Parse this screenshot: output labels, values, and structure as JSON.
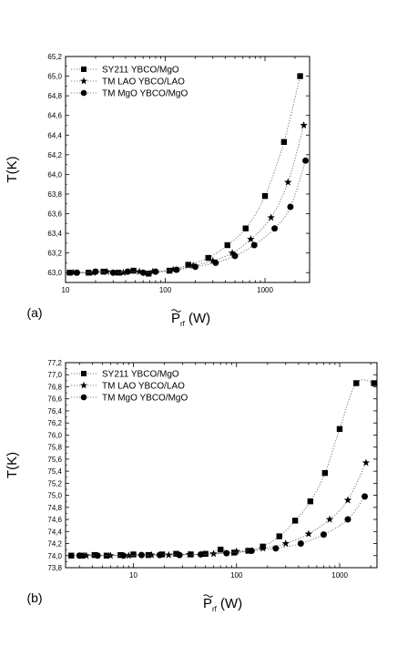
{
  "chart_data": [
    {
      "type": "scatter",
      "panel_label": "(a)",
      "xlabel": "P",
      "xlabel_sub": "rf",
      "xlabel_unit": "(W)",
      "ylabel": "T(K)",
      "x_scale": "log",
      "xlim": [
        10,
        2800
      ],
      "ylim": [
        62.9,
        65.2
      ],
      "x_tick_labels": [
        "10",
        "100",
        "1000"
      ],
      "y_tick_labels": [
        "63,0",
        "63,2",
        "63,4",
        "63,6",
        "63,8",
        "64,0",
        "64,2",
        "64,4",
        "64,6",
        "64,8",
        "65,0",
        "65,2"
      ],
      "y_tick_values": [
        63.0,
        63.2,
        63.4,
        63.6,
        63.8,
        64.0,
        64.2,
        64.4,
        64.6,
        64.8,
        65.0,
        65.2
      ],
      "legend_position": "top-left",
      "series": [
        {
          "name": "SY211  YBCO/MgO",
          "marker": "square",
          "x": [
            11,
            17,
            24,
            34,
            48,
            68,
            110,
            170,
            270,
            420,
            640,
            1000,
            1550,
            2250
          ],
          "y": [
            63.0,
            63.0,
            63.01,
            63.0,
            63.02,
            62.99,
            63.02,
            63.08,
            63.15,
            63.28,
            63.45,
            63.78,
            64.33,
            65.0
          ]
        },
        {
          "name": "TM LAO YBCO/LAO",
          "marker": "star",
          "x": [
            12,
            19,
            26,
            38,
            55,
            75,
            120,
            190,
            300,
            470,
            720,
            1150,
            1700,
            2450
          ],
          "y": [
            63.0,
            63.0,
            63.01,
            63.0,
            63.01,
            63.01,
            63.03,
            63.07,
            63.12,
            63.2,
            63.34,
            63.56,
            63.92,
            64.5
          ]
        },
        {
          "name": "TM MgO YBCO/MgO",
          "marker": "circle",
          "x": [
            13,
            20,
            30,
            42,
            60,
            80,
            130,
            200,
            320,
            500,
            780,
            1250,
            1800,
            2550
          ],
          "y": [
            63.0,
            63.01,
            63.0,
            63.01,
            63.0,
            63.01,
            63.03,
            63.06,
            63.1,
            63.17,
            63.28,
            63.45,
            63.67,
            64.14
          ]
        }
      ]
    },
    {
      "type": "scatter",
      "panel_label": "(b)",
      "xlabel": "P",
      "xlabel_sub": "rf",
      "xlabel_unit": "(W)",
      "ylabel": "T(K)",
      "x_scale": "log",
      "xlim": [
        2.2,
        2300
      ],
      "ylim": [
        73.8,
        77.2
      ],
      "x_tick_labels": [
        "10",
        "100",
        "1000"
      ],
      "y_tick_labels": [
        "73,8",
        "74,0",
        "74,2",
        "74,4",
        "74,6",
        "74,8",
        "75,0",
        "75,2",
        "75,4",
        "75,6",
        "75,8",
        "76,0",
        "76,2",
        "76,4",
        "76,6",
        "76,8",
        "77,0",
        "77,2"
      ],
      "y_tick_values": [
        73.8,
        74.0,
        74.2,
        74.4,
        74.6,
        74.8,
        75.0,
        75.2,
        75.4,
        75.6,
        75.8,
        76.0,
        76.2,
        76.4,
        76.6,
        76.8,
        77.0,
        77.2
      ],
      "legend_position": "top-left",
      "series": [
        {
          "name": "SY211  YBCO/MgO",
          "marker": "square",
          "x": [
            2.5,
            3.2,
            4.2,
            5.5,
            7.5,
            10,
            14,
            19,
            26,
            36,
            50,
            70,
            95,
            130,
            180,
            260,
            370,
            520,
            720,
            1000,
            1450,
            2150
          ],
          "y": [
            74.0,
            74.0,
            74.01,
            74.0,
            74.01,
            74.02,
            74.01,
            74.02,
            74.03,
            74.02,
            74.03,
            74.1,
            74.05,
            74.08,
            74.15,
            74.32,
            74.58,
            74.9,
            75.37,
            76.1,
            76.86,
            76.86
          ]
        },
        {
          "name": "TM LAO YBCO/LAO",
          "marker": "star",
          "x": [
            3.5,
            6,
            9,
            15,
            22,
            35,
            60,
            100,
            180,
            300,
            500,
            800,
            1200,
            1800
          ],
          "y": [
            74.0,
            74.0,
            74.0,
            74.01,
            74.01,
            74.02,
            74.03,
            74.07,
            74.12,
            74.2,
            74.36,
            74.6,
            74.92,
            75.54
          ]
        },
        {
          "name": "TM MgO YBCO/MgO",
          "marker": "circle",
          "x": [
            3,
            4.5,
            8,
            12,
            18,
            28,
            45,
            80,
            140,
            240,
            420,
            700,
            1200,
            1750
          ],
          "y": [
            74.0,
            74.0,
            74.0,
            74.01,
            74.01,
            74.01,
            74.02,
            74.04,
            74.08,
            74.12,
            74.2,
            74.35,
            74.6,
            74.98
          ]
        }
      ]
    }
  ]
}
